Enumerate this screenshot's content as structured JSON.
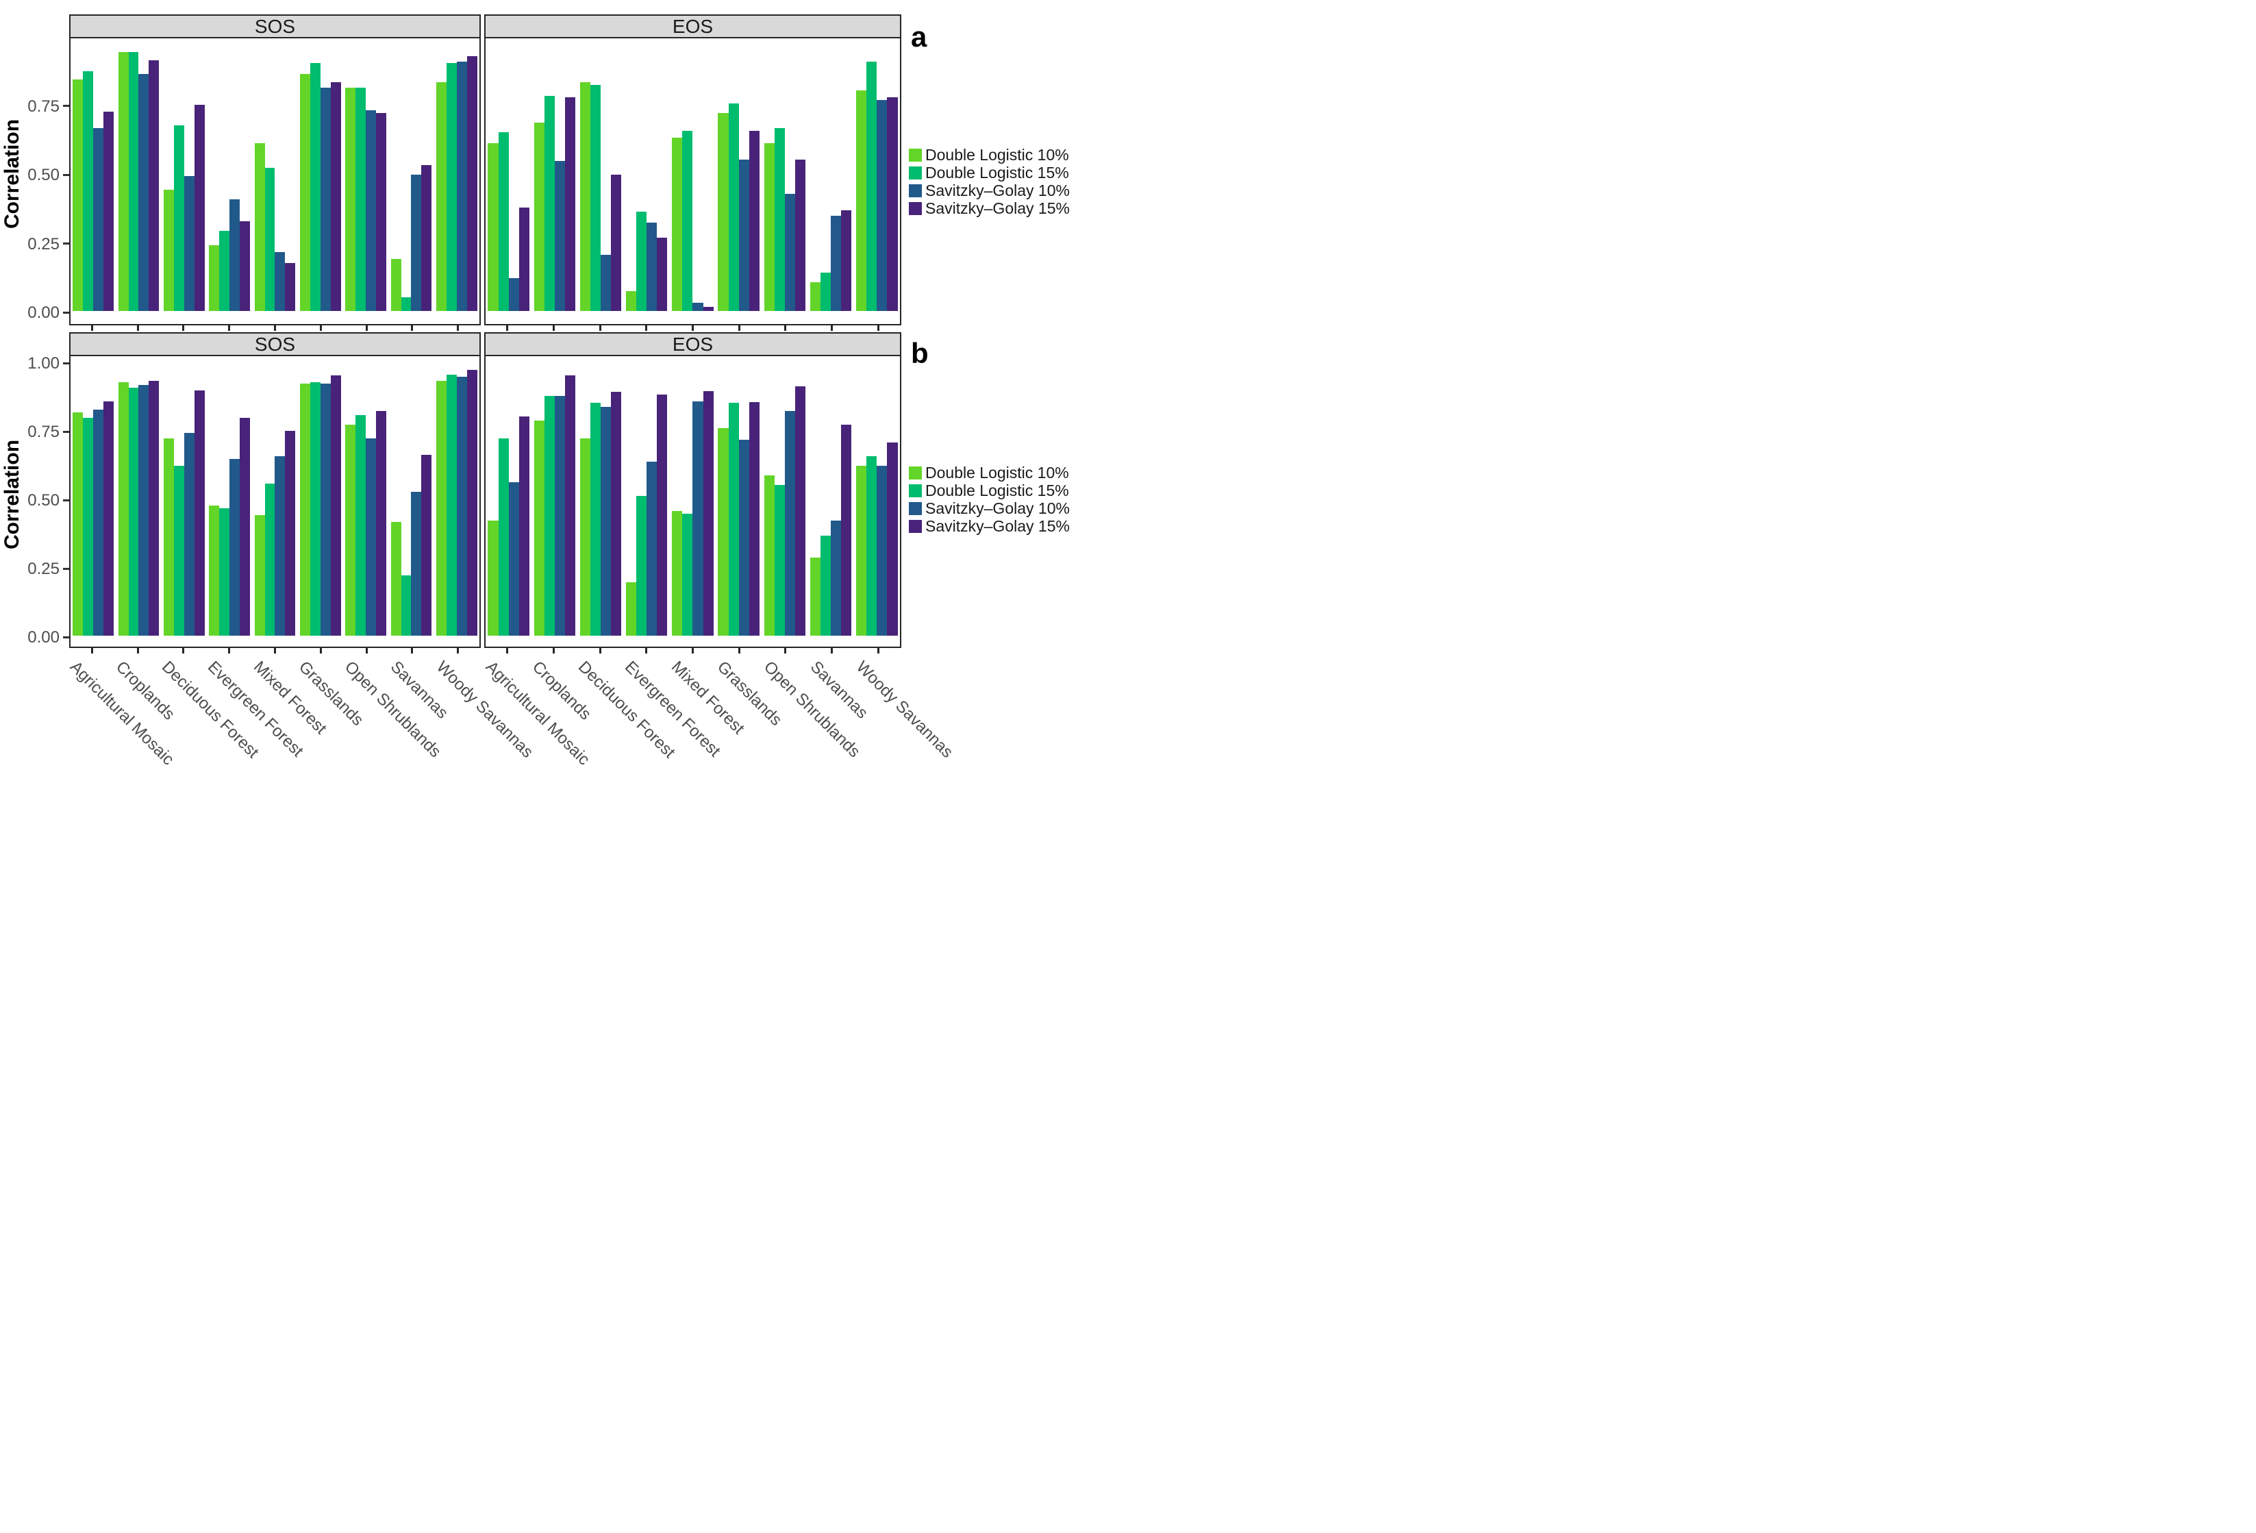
{
  "figure": {
    "ylabel": "Correlation",
    "row_letter_a": "a",
    "row_letter_b": "b"
  },
  "chart_data": {
    "type": "bar",
    "grid": "off",
    "legend_position": "right",
    "categories": [
      "Agricultural Mosaic",
      "Croplands",
      "Deciduous Forest",
      "Evergreen Forest",
      "Mixed Forest",
      "Grasslands",
      "Open Shrublands",
      "Savannas",
      "Woody Savannas"
    ],
    "series_names": [
      "Double Logistic 10%",
      "Double Logistic 15%",
      "Savitzky–Golay 10%",
      "Savitzky–Golay 15%"
    ],
    "series_colors": [
      "#63D528",
      "#00BC6E",
      "#21598B",
      "#482379"
    ],
    "rows": [
      {
        "label": "a",
        "ylabel": "Correlation",
        "ylim": [
          0,
          0.99
        ],
        "yticks": [
          "0.00",
          "0.25",
          "0.50",
          "0.75"
        ],
        "facets": [
          {
            "title": "SOS",
            "series": [
              {
                "name": "Double Logistic 10%",
                "values": [
                  0.84,
                  0.94,
                  0.44,
                  0.24,
                  0.61,
                  0.86,
                  0.81,
                  0.19,
                  0.83
                ]
              },
              {
                "name": "Double Logistic 15%",
                "values": [
                  0.87,
                  0.94,
                  0.675,
                  0.29,
                  0.52,
                  0.9,
                  0.81,
                  0.05,
                  0.9
                ]
              },
              {
                "name": "Savitzky–Golay 10%",
                "values": [
                  0.665,
                  0.86,
                  0.49,
                  0.405,
                  0.215,
                  0.81,
                  0.73,
                  0.495,
                  0.905
                ]
              },
              {
                "name": "Savitzky–Golay 15%",
                "values": [
                  0.725,
                  0.91,
                  0.75,
                  0.325,
                  0.175,
                  0.83,
                  0.72,
                  0.53,
                  0.925
                ]
              }
            ]
          },
          {
            "title": "EOS",
            "series": [
              {
                "name": "Double Logistic 10%",
                "values": [
                  0.61,
                  0.685,
                  0.83,
                  0.073,
                  0.63,
                  0.72,
                  0.61,
                  0.105,
                  0.8
                ]
              },
              {
                "name": "Double Logistic 15%",
                "values": [
                  0.65,
                  0.78,
                  0.82,
                  0.36,
                  0.655,
                  0.755,
                  0.665,
                  0.14,
                  0.905
                ]
              },
              {
                "name": "Savitzky–Golay 10%",
                "values": [
                  0.12,
                  0.545,
                  0.205,
                  0.32,
                  0.03,
                  0.55,
                  0.425,
                  0.345,
                  0.765
                ]
              },
              {
                "name": "Savitzky–Golay 15%",
                "values": [
                  0.375,
                  0.775,
                  0.495,
                  0.265,
                  0.015,
                  0.655,
                  0.55,
                  0.365,
                  0.775
                ]
              }
            ]
          }
        ]
      },
      {
        "label": "b",
        "ylabel": "Correlation",
        "ylim": [
          0,
          1.02
        ],
        "yticks": [
          "0.00",
          "0.25",
          "0.50",
          "0.75",
          "1.00"
        ],
        "facets": [
          {
            "title": "SOS",
            "series": [
              {
                "name": "Double Logistic 10%",
                "values": [
                  0.815,
                  0.925,
                  0.72,
                  0.475,
                  0.44,
                  0.92,
                  0.77,
                  0.415,
                  0.93
                ]
              },
              {
                "name": "Double Logistic 15%",
                "values": [
                  0.795,
                  0.905,
                  0.62,
                  0.465,
                  0.555,
                  0.925,
                  0.805,
                  0.22,
                  0.952
                ]
              },
              {
                "name": "Savitzky–Golay 10%",
                "values": [
                  0.825,
                  0.915,
                  0.74,
                  0.645,
                  0.655,
                  0.92,
                  0.72,
                  0.525,
                  0.945
                ]
              },
              {
                "name": "Savitzky–Golay 15%",
                "values": [
                  0.855,
                  0.93,
                  0.895,
                  0.795,
                  0.748,
                  0.95,
                  0.82,
                  0.66,
                  0.97
                ]
              }
            ]
          },
          {
            "title": "EOS",
            "series": [
              {
                "name": "Double Logistic 10%",
                "values": [
                  0.42,
                  0.785,
                  0.72,
                  0.195,
                  0.455,
                  0.757,
                  0.585,
                  0.285,
                  0.62
                ]
              },
              {
                "name": "Double Logistic 15%",
                "values": [
                  0.72,
                  0.875,
                  0.85,
                  0.51,
                  0.445,
                  0.85,
                  0.55,
                  0.365,
                  0.655
                ]
              },
              {
                "name": "Savitzky–Golay 10%",
                "values": [
                  0.56,
                  0.875,
                  0.835,
                  0.635,
                  0.855,
                  0.715,
                  0.82,
                  0.42,
                  0.62
                ]
              },
              {
                "name": "Savitzky–Golay 15%",
                "values": [
                  0.8,
                  0.95,
                  0.89,
                  0.88,
                  0.893,
                  0.852,
                  0.91,
                  0.77,
                  0.705
                ]
              }
            ]
          }
        ]
      }
    ]
  }
}
